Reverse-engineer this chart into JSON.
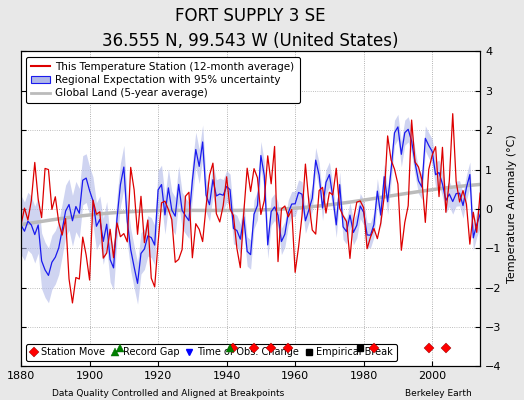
{
  "title": "FORT SUPPLY 3 SE",
  "subtitle": "36.555 N, 99.543 W (United States)",
  "ylabel": "Temperature Anomaly (°C)",
  "xlabel_left": "Data Quality Controlled and Aligned at Breakpoints",
  "xlabel_right": "Berkeley Earth",
  "ylim": [
    -4,
    4
  ],
  "xlim": [
    1880,
    2014
  ],
  "yticks": [
    -4,
    -3,
    -2,
    -1,
    0,
    1,
    2,
    3,
    4
  ],
  "xticks": [
    1880,
    1900,
    1920,
    1940,
    1960,
    1980,
    2000
  ],
  "background_color": "#e8e8e8",
  "plot_bg_color": "#ffffff",
  "station_moves": [
    1942,
    1948,
    1953,
    1958,
    1983,
    1999,
    2004
  ],
  "record_gaps": [
    1909,
    1941
  ],
  "time_obs_changes": [],
  "empirical_breaks": [
    1979
  ],
  "uncertainty_color": "#b0b8e8",
  "regional_color": "#1a1aee",
  "station_color": "#dd0000",
  "global_color": "#bbbbbb",
  "legend_fontsize": 8,
  "title_fontsize": 12,
  "subtitle_fontsize": 9
}
